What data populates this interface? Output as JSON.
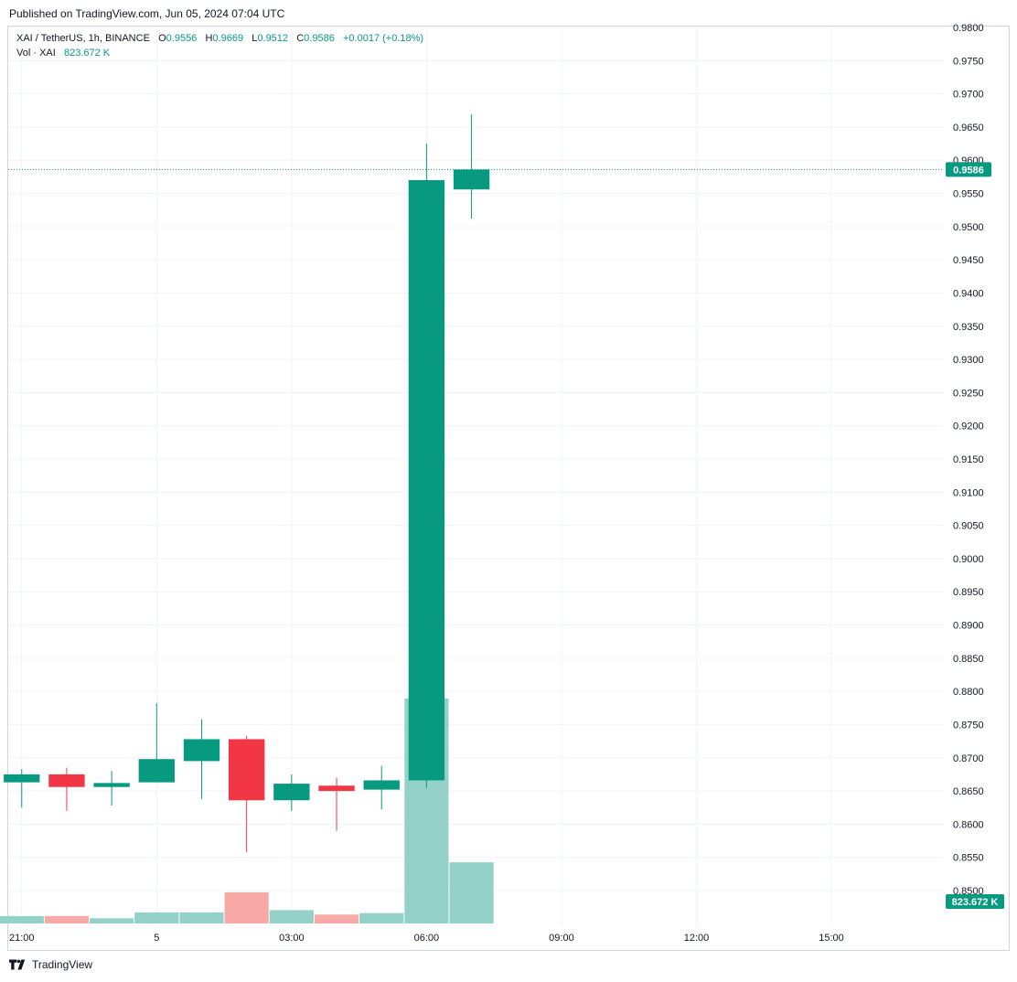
{
  "header": {
    "published": "Published on TradingView.com, Jun 05, 2024 07:04 UTC"
  },
  "legend": {
    "symbol": "XAI / TetherUS, 1h, BINANCE",
    "open_label": "O",
    "open": "0.9556",
    "high_label": "H",
    "high": "0.9669",
    "low_label": "L",
    "low": "0.9512",
    "close_label": "C",
    "close": "0.9586",
    "change": "+0.0017 (+0.18%)",
    "vol_label": "Vol · XAI",
    "vol_value": "823.672 K"
  },
  "footer": {
    "brand": "TradingView"
  },
  "colors": {
    "up": "#089981",
    "down": "#f23645",
    "up_volume": "#94d1c9",
    "down_volume": "#f7a9a7",
    "grid": "#f0f3fa",
    "axis_text": "#131722"
  },
  "chart_data": {
    "type": "candlestick",
    "symbol": "XAI / TetherUS",
    "interval": "1h",
    "exchange": "BINANCE",
    "ylim": [
      0.85,
      0.98
    ],
    "y_ticks": [
      "0.9800",
      "0.9750",
      "0.9700",
      "0.9650",
      "0.9600",
      "0.9550",
      "0.9500",
      "0.9450",
      "0.9400",
      "0.9350",
      "0.9300",
      "0.9250",
      "0.9200",
      "0.9150",
      "0.9100",
      "0.9050",
      "0.9000",
      "0.8950",
      "0.8900",
      "0.8850",
      "0.8800",
      "0.8750",
      "0.8700",
      "0.8650",
      "0.8600",
      "0.8550",
      "0.8500"
    ],
    "x_ticks": [
      {
        "index": 0,
        "label": "21:00"
      },
      {
        "index": 3,
        "label": "5"
      },
      {
        "index": 6,
        "label": "03:00"
      },
      {
        "index": 9,
        "label": "06:00"
      },
      {
        "index": 12,
        "label": "09:00"
      },
      {
        "index": 15,
        "label": "12:00"
      },
      {
        "index": 18,
        "label": "15:00"
      }
    ],
    "x_range": [
      -0.3,
      20.5
    ],
    "candles": [
      {
        "o": 0.8663,
        "h": 0.8683,
        "l": 0.8625,
        "c": 0.8675,
        "v": 0.1
      },
      {
        "o": 0.8675,
        "h": 0.8685,
        "l": 0.862,
        "c": 0.8656,
        "v": 0.1
      },
      {
        "o": 0.8656,
        "h": 0.868,
        "l": 0.8628,
        "c": 0.8662,
        "v": 0.07
      },
      {
        "o": 0.8663,
        "h": 0.8782,
        "l": 0.8663,
        "c": 0.8698,
        "v": 0.15
      },
      {
        "o": 0.8695,
        "h": 0.8758,
        "l": 0.8638,
        "c": 0.8728,
        "v": 0.15
      },
      {
        "o": 0.8728,
        "h": 0.8733,
        "l": 0.8558,
        "c": 0.8636,
        "v": 0.42
      },
      {
        "o": 0.8636,
        "h": 0.8675,
        "l": 0.862,
        "c": 0.8661,
        "v": 0.18
      },
      {
        "o": 0.8658,
        "h": 0.867,
        "l": 0.859,
        "c": 0.865,
        "v": 0.12
      },
      {
        "o": 0.8652,
        "h": 0.8688,
        "l": 0.8622,
        "c": 0.8666,
        "v": 0.14
      },
      {
        "o": 0.8666,
        "h": 0.9625,
        "l": 0.8655,
        "c": 0.957,
        "v": 3.03
      },
      {
        "o": 0.9556,
        "h": 0.9669,
        "l": 0.9512,
        "c": 0.9586,
        "v": 0.8237
      }
    ],
    "volume_unit": "M",
    "current_price": "0.9586",
    "current_volume": "823.672 K"
  }
}
